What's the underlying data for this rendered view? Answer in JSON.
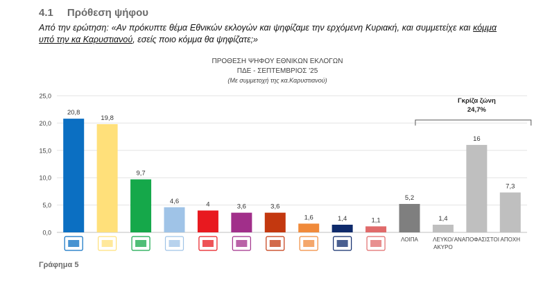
{
  "section": {
    "number": "4.1",
    "title": "Πρόθεση ψήφου"
  },
  "question": {
    "part1": "Από την ερώτηση: «Αν πρόκυπτε θέμα Εθνικών εκλογών και ψηφίζαμε την ερχόμενη Κυριακή, και συμμετείχε και ",
    "underlined": "κόμμα υπό την κα Καρυστιανού",
    "part2": ", εσείς ποιο κόμμα θα ψηφίζατε;»"
  },
  "footer": "Γράφημα 5",
  "chart_data": {
    "type": "bar",
    "title": "ΠΡΟΘΕΣΗ ΨΗΦΟΥ  ΕΘΝΙΚΩΝ ΕΚΛΟΓΩΝ",
    "subtitle": "ΠΔΕ - ΣΕΠΤΕΜΒΡΙΟΣ '25",
    "note": "(Με συμμετοχή της κα.Καρυστιανού)",
    "ylim": [
      0,
      25
    ],
    "yticks": [
      "0,0",
      "5,0",
      "10,0",
      "15,0",
      "20,0",
      "25,0"
    ],
    "grid": true,
    "categories": [
      "ΝΔ",
      "Καρυστιανού",
      "ΠΑΣΟΚ",
      "Συμπόρευση Ελλήνων",
      "ΚΚΕ",
      "ΕΛΛΗΝΙΚΗ ΛΥΣΗ",
      "ΣΥΡΙΖΑ",
      "ΜέΡΑ25",
      "ΦΩΝΗ ΛΟΓΙΚΗΣ",
      "ΝΙΚΗ",
      "ΛΟΙΠΑ",
      "ΛΕΥΚΟ/ ΑΚΥΡΟ",
      "ΑΝΑΠΟΦΑΣΙΣΤΟΙ",
      "ΑΠΟΧΗ"
    ],
    "values": [
      20.8,
      19.8,
      9.7,
      4.6,
      4,
      3.6,
      3.6,
      1.6,
      1.4,
      1.1,
      5.2,
      1.4,
      16,
      7.3
    ],
    "value_labels": [
      "20,8",
      "19,8",
      "9,7",
      "4,6",
      "4",
      "3,6",
      "3,6",
      "1,6",
      "1,4",
      "1,1",
      "5,2",
      "1,4",
      "16",
      "7,3"
    ],
    "colors": [
      "#0b6fc2",
      "#ffe07a",
      "#15a84a",
      "#9fc3e7",
      "#e8191f",
      "#a12f8a",
      "#c3380f",
      "#f08a3a",
      "#0e2a6b",
      "#e06a6a",
      "#7f7f7f",
      "#bfbfbf",
      "#bfbfbf",
      "#bfbfbf"
    ],
    "text_labels": {
      "ΛΟΙΠΑ": "ΛΟΙΠΑ",
      "ΛΕΥΚΟ/ ΑΚΥΡΟ": "ΛΕΥΚΟ/ ΑΚΥΡΟ",
      "ΑΝΑΠΟΦΑΣΙΣΤΟΙ": "ΑΝΑΠΟΦΑΣΙΣΤΟΙ",
      "ΑΠΟΧΗ": "ΑΠΟΧΗ"
    },
    "annotation": {
      "label": "Γκρίζα ζώνη",
      "value": "24,7%"
    }
  }
}
